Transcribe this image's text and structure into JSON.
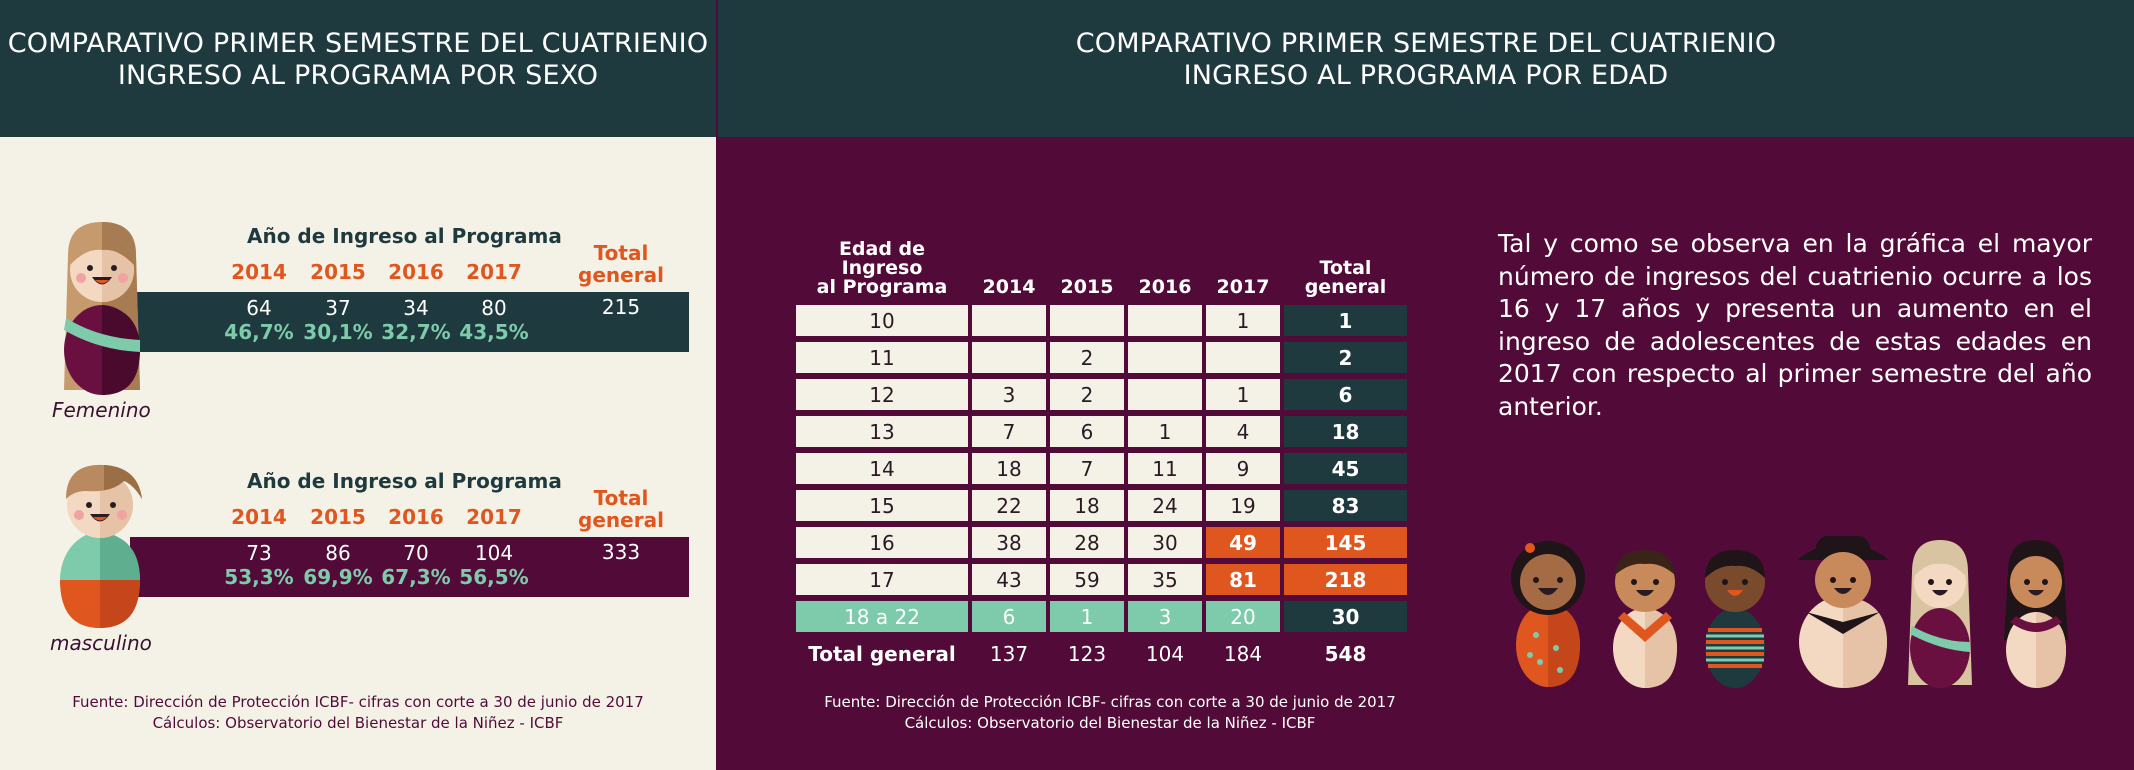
{
  "left": {
    "title_line1": "COMPARATIVO PRIMER SEMESTRE DEL CUATRIENIO",
    "title_line2": "INGRESO AL PROGRAMA POR SEXO",
    "year_header": "Año de Ingreso al Programa",
    "years": [
      "2014",
      "2015",
      "2016",
      "2017"
    ],
    "total_label_line1": "Total",
    "total_label_line2": "general",
    "source_line1": "Fuente: Dirección de Protección ICBF- cifras con corte a 30 de junio de 2017",
    "source_line2": "Cálculos: Observatorio del Bienestar de la Niñez - ICBF"
  },
  "right": {
    "title_line1": "COMPARATIVO PRIMER SEMESTRE DEL CUATRIENIO",
    "title_line2": "INGRESO AL PROGRAMA POR EDAD",
    "description": "Tal y como se observa en la gráfica el mayor número de ingresos del cuatrienio ocurre a los 16 y 17 años y presenta un aumento en el ingreso de adolescentes de estas edades en 2017 con respecto al primer semestre del año anterior.",
    "source_line1": "Fuente: Dirección de Protección ICBF- cifras con corte a 30 de junio de 2017",
    "source_line2": "Cálculos: Observatorio del Bienestar de la Niñez - ICBF"
  },
  "colors": {
    "dark_teal": "#1f3a3f",
    "plum": "#520b38",
    "cream": "#f4f2e7",
    "orange": "#e0561f",
    "mint": "#7ecbab"
  },
  "icons": [
    "girl-figure-icon",
    "boy-figure-icon",
    "children-group-icon"
  ],
  "chart_data": [
    {
      "type": "table",
      "title": "INGRESO AL PROGRAMA POR SEXO",
      "columns": [
        "2014",
        "2015",
        "2016",
        "2017",
        "Total general"
      ],
      "rows": [
        {
          "label": "Femenino",
          "counts": [
            "64",
            "37",
            "34",
            "80"
          ],
          "percents": [
            "46,7%",
            "30,1%",
            "32,7%",
            "43,5%"
          ],
          "total": "215"
        },
        {
          "label": "masculino",
          "counts": [
            "73",
            "86",
            "70",
            "104"
          ],
          "percents": [
            "53,3%",
            "69,9%",
            "67,3%",
            "56,5%"
          ],
          "total": "333"
        }
      ]
    },
    {
      "type": "table",
      "title": "INGRESO AL PROGRAMA POR EDAD",
      "row_header_line1": "Edad de Ingreso",
      "row_header_line2": "al Programa",
      "columns": [
        "2014",
        "2015",
        "2016",
        "2017"
      ],
      "total_header_line1": "Total",
      "total_header_line2": "general",
      "rows": [
        {
          "age": "10",
          "v2014": "",
          "v2015": "",
          "v2016": "",
          "v2017": "1",
          "total": "1"
        },
        {
          "age": "11",
          "v2014": "",
          "v2015": "2",
          "v2016": "",
          "v2017": "",
          "total": "2"
        },
        {
          "age": "12",
          "v2014": "3",
          "v2015": "2",
          "v2016": "",
          "v2017": "1",
          "total": "6"
        },
        {
          "age": "13",
          "v2014": "7",
          "v2015": "6",
          "v2016": "1",
          "v2017": "4",
          "total": "18"
        },
        {
          "age": "14",
          "v2014": "18",
          "v2015": "7",
          "v2016": "11",
          "v2017": "9",
          "total": "45"
        },
        {
          "age": "15",
          "v2014": "22",
          "v2015": "18",
          "v2016": "24",
          "v2017": "19",
          "total": "83"
        },
        {
          "age": "16",
          "v2014": "38",
          "v2015": "28",
          "v2016": "30",
          "v2017": "49",
          "total": "145"
        },
        {
          "age": "17",
          "v2014": "43",
          "v2015": "59",
          "v2016": "35",
          "v2017": "81",
          "total": "218"
        },
        {
          "age": "18 a 22",
          "v2014": "6",
          "v2015": "1",
          "v2016": "3",
          "v2017": "20",
          "total": "30"
        }
      ],
      "total_row": {
        "label": "Total general",
        "v2014": "137",
        "v2015": "123",
        "v2016": "104",
        "v2017": "184",
        "total": "548"
      }
    }
  ]
}
